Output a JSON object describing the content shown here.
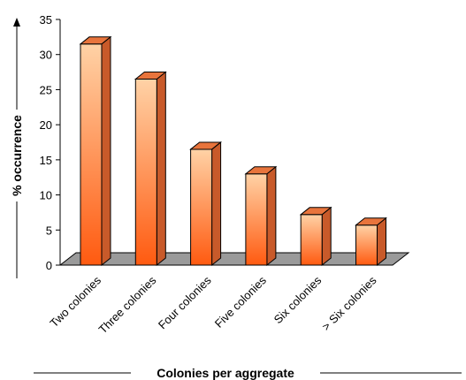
{
  "chart_data": {
    "type": "bar",
    "categories": [
      "Two colonies",
      "Three colonies",
      "Four colonies",
      "Five colonies",
      "Six colonies",
      "> Six colonies"
    ],
    "values": [
      31.5,
      26.5,
      16.5,
      13,
      7.2,
      5.7
    ],
    "ylabel": "% occurrence",
    "xlabel": "Colonies per aggregate",
    "ylim": [
      0,
      35
    ],
    "yticks": [
      0,
      5,
      10,
      15,
      20,
      25,
      30,
      35
    ],
    "grid": false,
    "legend": "none",
    "style": "3d-column",
    "colors": {
      "bar_top": "#ffd2a6",
      "bar_bottom": "#ff5a10",
      "bar_side": "#c85a2a",
      "bar_cap": "#e8743c",
      "floor": "#9a9a9a"
    }
  }
}
